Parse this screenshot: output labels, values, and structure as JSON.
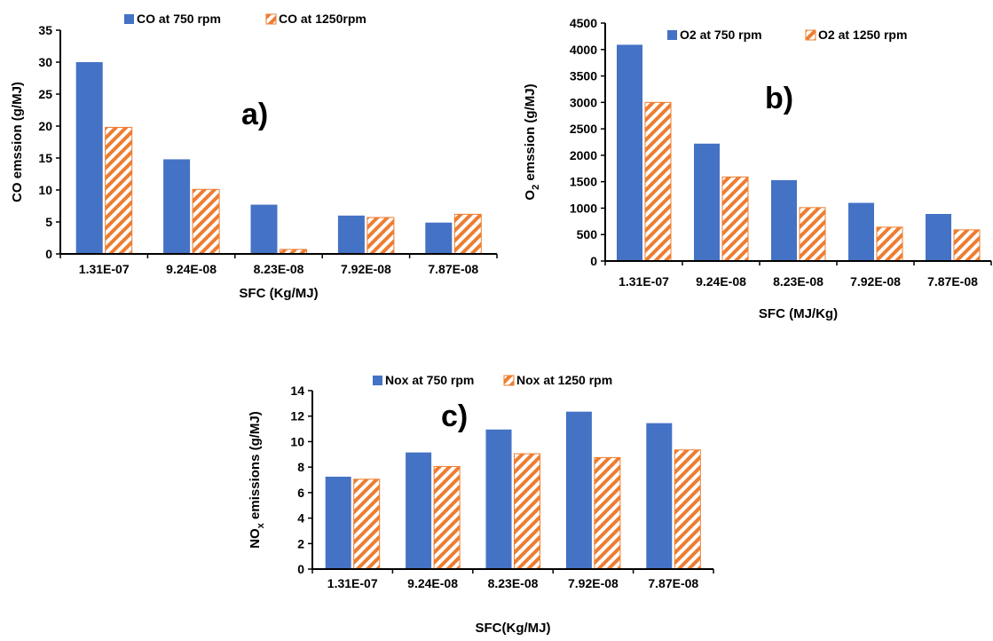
{
  "colors": {
    "series1": "#4472C4",
    "series2": "#ED7D31"
  },
  "chart_data": [
    {
      "type": "bar",
      "panel_label": "a)",
      "categories": [
        "1.31E-07",
        "9.24E-08",
        "8.23E-08",
        "7.92E-08",
        "7.87E-08"
      ],
      "series": [
        {
          "name": "CO at 750 rpm",
          "values": [
            30,
            14.8,
            7.7,
            6,
            4.9
          ]
        },
        {
          "name": "CO at 1250rpm",
          "values": [
            19.8,
            10.1,
            0.7,
            5.7,
            6.2
          ]
        }
      ],
      "xlabel": "SFC (Kg/MJ)",
      "ylabel": "CO emssion (g/MJ)",
      "yticks": [
        "0",
        "5",
        "10",
        "15",
        "20",
        "25",
        "30",
        "35"
      ],
      "ylim": [
        0,
        35
      ],
      "legend": "top"
    },
    {
      "type": "bar",
      "panel_label": "b)",
      "categories": [
        "1.31E-07",
        "9.24E-08",
        "8.23E-08",
        "7.92E-08",
        "7.87E-08"
      ],
      "series": [
        {
          "name": "O2 at 750 rpm",
          "values": [
            4090,
            2220,
            1530,
            1100,
            890
          ]
        },
        {
          "name": "O2 at 1250 rpm",
          "values": [
            3000,
            1590,
            1010,
            640,
            590
          ]
        }
      ],
      "xlabel": "SFC (MJ/Kg)",
      "ylabel_parts": [
        "O",
        "2",
        " emssion  (g/MJ)"
      ],
      "yticks": [
        "0",
        "500",
        "1000",
        "1500",
        "2000",
        "2500",
        "3000",
        "3500",
        "4000",
        "4500"
      ],
      "ylim": [
        0,
        4500
      ],
      "legend": "top"
    },
    {
      "type": "bar",
      "panel_label": "c)",
      "categories": [
        "1.31E-07",
        "9.24E-08",
        "8.23E-08",
        "7.92E-08",
        "7.87E-08"
      ],
      "series": [
        {
          "name": "Nox at 750 rpm",
          "values": [
            7.25,
            9.15,
            10.95,
            12.35,
            11.45
          ]
        },
        {
          "name": "Nox at 1250 rpm",
          "values": [
            7.05,
            8.05,
            9.05,
            8.75,
            9.35
          ]
        }
      ],
      "xlabel": "SFC(Kg/MJ)",
      "ylabel_parts": [
        "NO",
        "x",
        " emissions (g/MJ)"
      ],
      "yticks": [
        "0",
        "2",
        "4",
        "6",
        "8",
        "10",
        "12",
        "14"
      ],
      "ylim": [
        0,
        14
      ],
      "legend": "top"
    }
  ]
}
